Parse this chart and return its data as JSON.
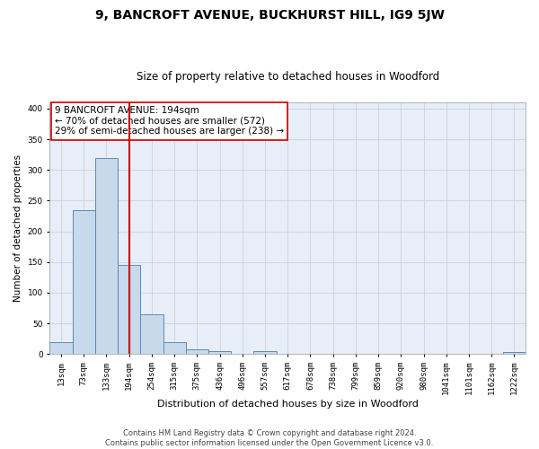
{
  "title": "9, BANCROFT AVENUE, BUCKHURST HILL, IG9 5JW",
  "subtitle": "Size of property relative to detached houses in Woodford",
  "xlabel": "Distribution of detached houses by size in Woodford",
  "ylabel": "Number of detached properties",
  "bar_labels": [
    "13sqm",
    "73sqm",
    "133sqm",
    "194sqm",
    "254sqm",
    "315sqm",
    "375sqm",
    "436sqm",
    "496sqm",
    "557sqm",
    "617sqm",
    "678sqm",
    "738sqm",
    "799sqm",
    "859sqm",
    "920sqm",
    "980sqm",
    "1041sqm",
    "1101sqm",
    "1162sqm",
    "1222sqm"
  ],
  "bar_values": [
    20,
    235,
    320,
    145,
    65,
    20,
    8,
    5,
    0,
    5,
    0,
    0,
    0,
    0,
    0,
    0,
    0,
    0,
    0,
    0,
    3
  ],
  "bar_color": "#c9d9ec",
  "bar_edge_color": "#5a8ab5",
  "vline_x": 3,
  "vline_color": "#cc0000",
  "annotation_text": "9 BANCROFT AVENUE: 194sqm\n← 70% of detached houses are smaller (572)\n29% of semi-detached houses are larger (238) →",
  "annotation_box_color": "#ffffff",
  "annotation_box_edge": "#cc0000",
  "ylim": [
    0,
    410
  ],
  "yticks": [
    0,
    50,
    100,
    150,
    200,
    250,
    300,
    350,
    400
  ],
  "grid_color": "#ccd5e3",
  "bg_color": "#e8eef7",
  "footnote": "Contains HM Land Registry data © Crown copyright and database right 2024.\nContains public sector information licensed under the Open Government Licence v3.0.",
  "title_fontsize": 10,
  "subtitle_fontsize": 8.5,
  "ylabel_fontsize": 7.5,
  "xlabel_fontsize": 8,
  "tick_fontsize": 6.5,
  "annotation_fontsize": 7.5,
  "footnote_fontsize": 6
}
